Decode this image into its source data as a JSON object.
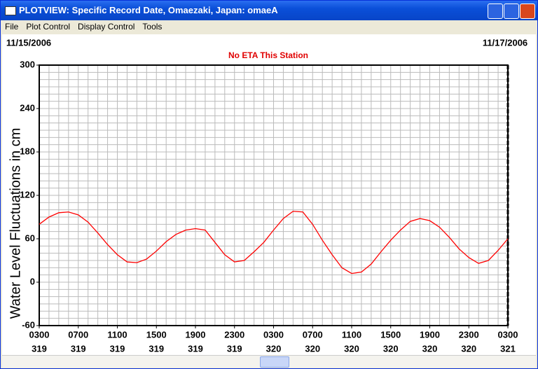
{
  "window": {
    "title": "PLOTVIEW: Specific Record Date, Omaezaki, Japan: omaeA"
  },
  "menu": [
    "File",
    "Plot Control",
    "Display Control",
    "Tools"
  ],
  "chart_data": {
    "type": "line",
    "start_date": "11/15/2006",
    "end_date": "11/17/2006",
    "subtitle": "No ETA This Station",
    "y_label": "Water Level Fluctuations in cm",
    "categories": [
      "0300",
      null,
      null,
      null,
      "0700",
      null,
      null,
      null,
      "1100",
      null,
      null,
      null,
      "1500",
      null,
      null,
      null,
      "1900",
      null,
      null,
      null,
      "2300",
      null,
      null,
      null,
      "0300",
      null,
      null,
      null,
      "0700",
      null,
      null,
      null,
      "1100",
      null,
      null,
      null,
      "1500",
      null,
      null,
      null,
      "1900",
      null,
      null,
      null,
      "2300",
      null,
      null,
      null,
      "0300"
    ],
    "days": [
      "319",
      null,
      null,
      null,
      "319",
      null,
      null,
      null,
      "319",
      null,
      null,
      null,
      "319",
      null,
      null,
      null,
      "319",
      null,
      null,
      null,
      "319",
      null,
      null,
      null,
      "320",
      null,
      null,
      null,
      "320",
      null,
      null,
      null,
      "320",
      null,
      null,
      null,
      "320",
      null,
      null,
      null,
      "320",
      null,
      null,
      null,
      "320",
      null,
      null,
      null,
      "321"
    ],
    "series": [
      {
        "color": "#ff0000",
        "values": [
          80,
          90,
          96,
          97,
          93,
          83,
          68,
          52,
          38,
          28,
          27,
          32,
          43,
          56,
          66,
          72,
          74,
          72,
          55,
          38,
          28,
          30,
          42,
          55,
          72,
          88,
          98,
          97,
          80,
          58,
          38,
          20,
          12,
          14,
          25,
          42,
          58,
          72,
          84,
          88,
          85,
          76,
          62,
          46,
          34,
          26,
          30,
          44,
          60
        ]
      }
    ],
    "ylim": [
      -60,
      300
    ],
    "yticks": [
      -60,
      0,
      60,
      120,
      180,
      240,
      300
    ],
    "grid": true
  }
}
